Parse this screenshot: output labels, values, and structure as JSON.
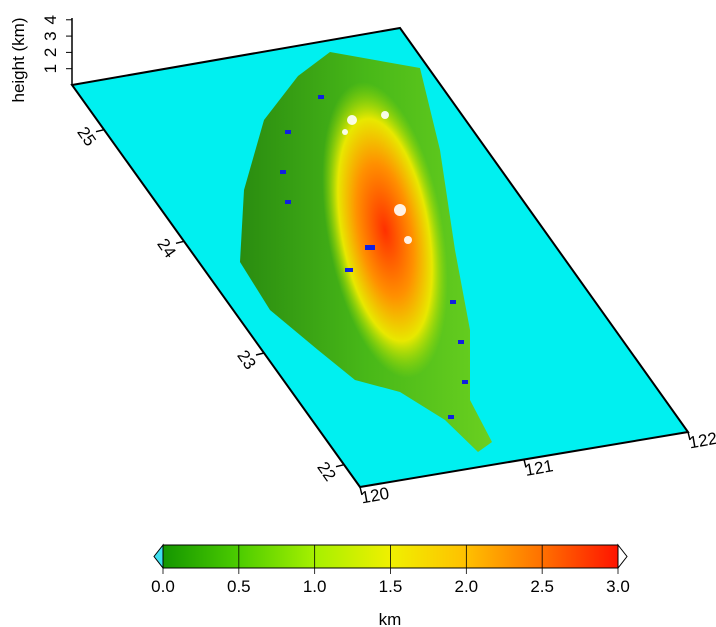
{
  "map": {
    "z_axis": {
      "label": "height (km)",
      "ticks": [
        1,
        2,
        3,
        4
      ],
      "lim": [
        0,
        4.6
      ]
    },
    "lat_lim": [
      21.8,
      25.4
    ],
    "lat_ticks": [
      22,
      23,
      24,
      25
    ],
    "lon_lim": [
      120,
      122
    ],
    "lon_ticks": [
      120,
      121,
      122
    ],
    "sea_color": "#00f0f0"
  },
  "colorbar": {
    "label": "km",
    "lim": [
      0,
      3
    ],
    "ticks": [
      {
        "value": 0,
        "label": "0.0"
      },
      {
        "value": 0.5,
        "label": "0.5"
      },
      {
        "value": 1,
        "label": "1.0"
      },
      {
        "value": 1.5,
        "label": "1.5"
      },
      {
        "value": 2,
        "label": "2.0"
      },
      {
        "value": 2.5,
        "label": "2.5"
      },
      {
        "value": 3,
        "label": "3.0"
      }
    ],
    "colors": [
      "#149600",
      "#4ccc00",
      "#a6f000",
      "#f0f000",
      "#ffc000",
      "#ff7000",
      "#ff1400"
    ]
  }
}
